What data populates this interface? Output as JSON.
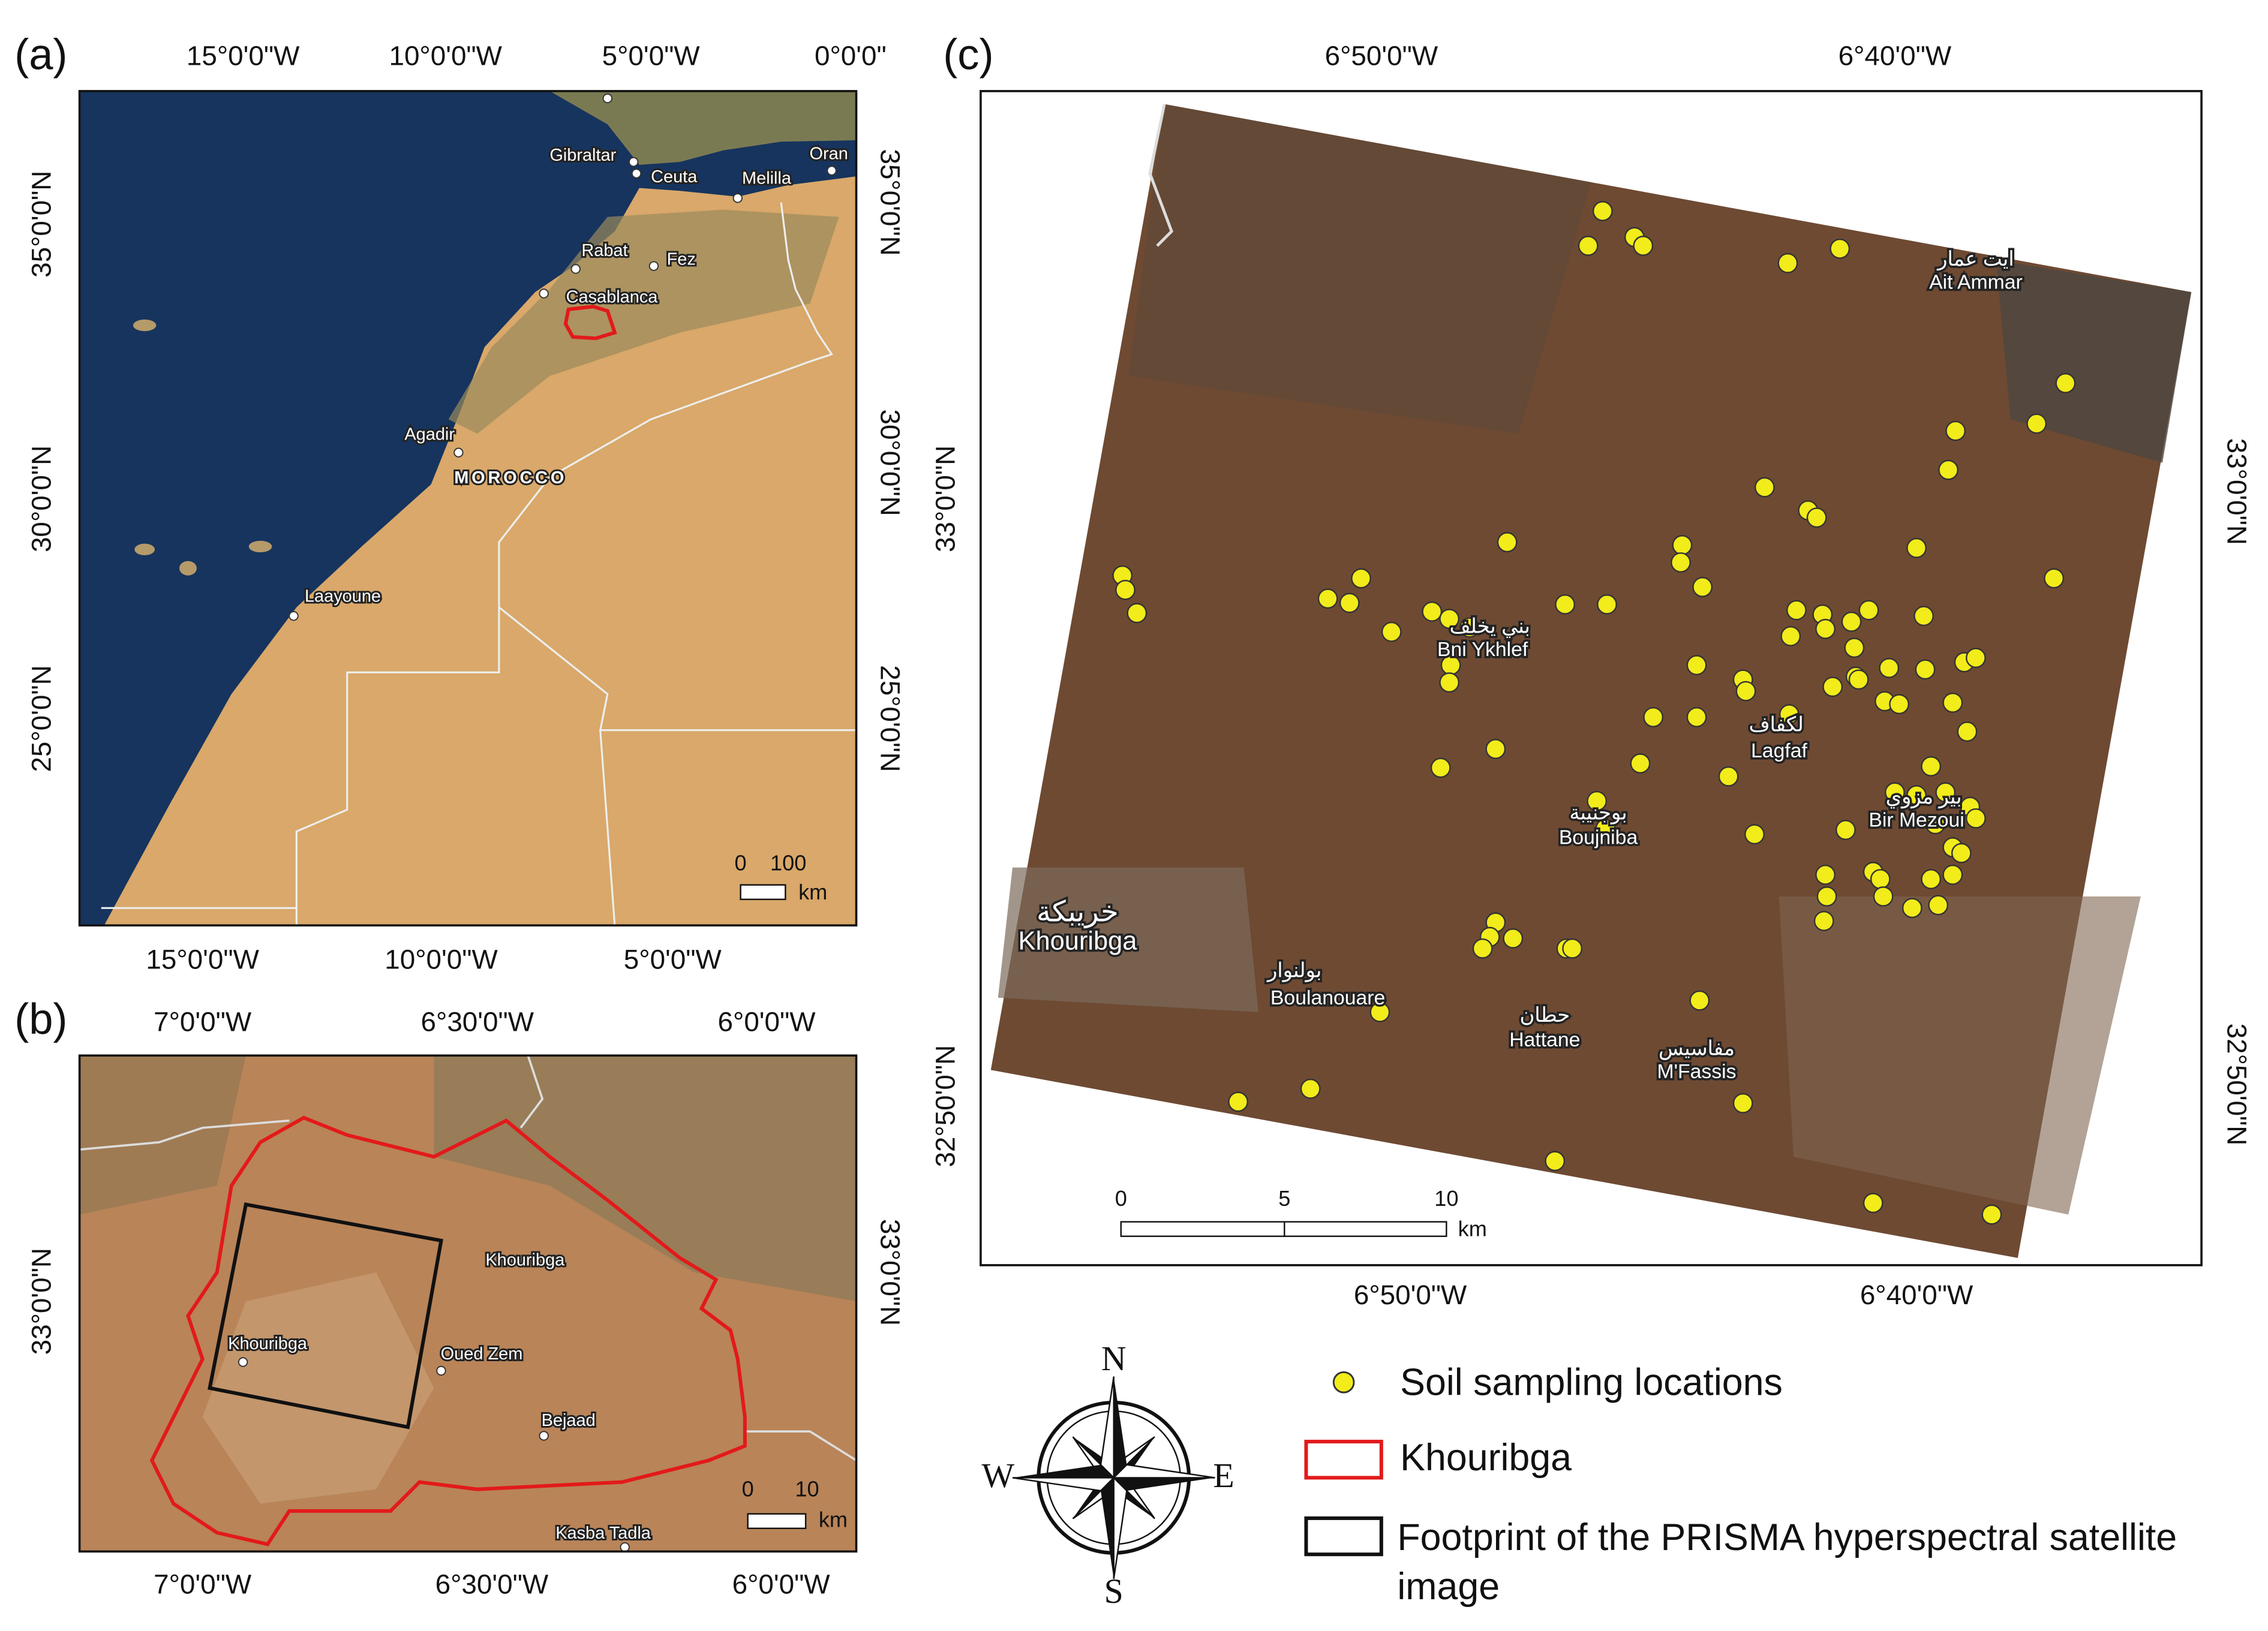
{
  "panel_a": {
    "label": "(a)",
    "top_ticks": [
      "15°0'0\"W",
      "10°0'0\"W",
      "5°0'0\"W",
      "0°0'0\""
    ],
    "bottom_ticks": [
      "15°0'0\"W",
      "10°0'0\"W",
      "5°0'0\"W"
    ],
    "left_ticks": [
      "35°0'0\"N",
      "30°0'0\"N",
      "25°0'0\"N"
    ],
    "right_ticks": [
      "35°0'0\"N",
      "30°0'0\"N",
      "25°0'0\"N"
    ],
    "places": [
      "Gibraltar",
      "Ceuta",
      "Melilla",
      "Oran",
      "Rabat",
      "Fez",
      "Casablanca",
      "Agadir",
      "MOROCCO",
      "Laayoune"
    ],
    "scale": [
      "0",
      "100",
      "km"
    ]
  },
  "panel_b": {
    "label": "(b)",
    "top_ticks": [
      "7°0'0\"W",
      "6°30'0\"W",
      "6°0'0\"W"
    ],
    "bottom_ticks": [
      "7°0'0\"W",
      "6°30'0\"W",
      "6°0'0\"W"
    ],
    "left_ticks": [
      "33°0'0\"N"
    ],
    "right_ticks": [
      "33°0'0\"N"
    ],
    "places": [
      "Khouribga",
      "Khouribga",
      "Oued Zem",
      "Bejaad",
      "Kasba Tadla"
    ],
    "scale": [
      "0",
      "10",
      "km"
    ]
  },
  "panel_c": {
    "label": "(c)",
    "top_ticks": [
      "6°50'0\"W",
      "6°40'0\"W"
    ],
    "bottom_ticks": [
      "6°50'0\"W",
      "6°40'0\"W"
    ],
    "left_ticks": [
      "33°0'0\"N",
      "32°50'0\"N"
    ],
    "right_ticks": [
      "33°0'0\"N",
      "32°50'0\"N"
    ],
    "places": [
      {
        "arabic": "ايت عمار",
        "latin": "Ait Ammar"
      },
      {
        "arabic": "بني يخلف",
        "latin": "Bni Ykhlef"
      },
      {
        "arabic": "لكفاف",
        "latin": "Lagfaf"
      },
      {
        "arabic": "بوجنيبة",
        "latin": "Boujniba"
      },
      {
        "arabic": "بير مزوي",
        "latin": "Bir Mezoui"
      },
      {
        "arabic": "خريبكة",
        "latin": "Khouribga"
      },
      {
        "arabic": "بولنوار",
        "latin": "Boulanouare"
      },
      {
        "arabic": "حطان",
        "latin": "Hattane"
      },
      {
        "arabic": "مفاسيس",
        "latin": "M'Fassis"
      }
    ],
    "scale": [
      "0",
      "5",
      "10",
      "km"
    ]
  },
  "legend": [
    "Soil sampling locations",
    "Khouribga",
    "Footprint of the PRISMA hyperspectral satellite image"
  ],
  "compass": {
    "north": "N",
    "south": "S",
    "east": "E",
    "west": "W"
  }
}
